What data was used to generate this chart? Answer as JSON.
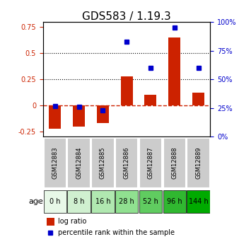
{
  "title": "GDS583 / 1.19.3",
  "samples": [
    "GSM12883",
    "GSM12884",
    "GSM12885",
    "GSM12886",
    "GSM12887",
    "GSM12888",
    "GSM12889"
  ],
  "ages": [
    "0 h",
    "8 h",
    "16 h",
    "28 h",
    "52 h",
    "96 h",
    "144 h"
  ],
  "age_colors": [
    "#e8f5e8",
    "#c8ecc8",
    "#a8e4a8",
    "#88dc88",
    "#55cc55",
    "#33bb33",
    "#00aa00"
  ],
  "log_ratios": [
    -0.22,
    -0.2,
    -0.17,
    0.28,
    0.1,
    0.65,
    0.12
  ],
  "percentile_ranks": [
    27,
    26,
    23,
    83,
    60,
    95,
    60
  ],
  "left_ylim": [
    -0.3,
    0.8
  ],
  "right_ylim": [
    0,
    100
  ],
  "left_yticks": [
    -0.25,
    0,
    0.25,
    0.5,
    0.75
  ],
  "right_yticks": [
    0,
    25,
    50,
    75,
    100
  ],
  "left_yticklabels": [
    "-0.25",
    "0",
    "0.25",
    "0.5",
    "0.75"
  ],
  "right_yticklabels": [
    "0%",
    "25%",
    "50%",
    "75%",
    "100%"
  ],
  "hlines": [
    0.25,
    0.5
  ],
  "bar_color": "#cc2200",
  "dot_color": "#0000cc",
  "zero_line_color": "#cc2200",
  "grid_color": "#000000",
  "bg_color": "#ffffff",
  "sample_bg_color": "#cccccc",
  "bar_width": 0.5
}
